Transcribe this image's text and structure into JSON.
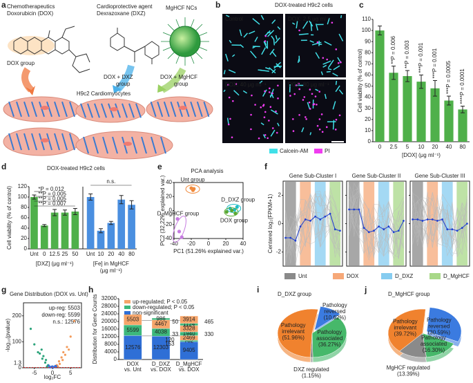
{
  "panel_labels": [
    "a",
    "b",
    "c",
    "d",
    "e",
    "f",
    "g",
    "h",
    "i",
    "j"
  ],
  "a": {
    "dox_title": [
      "Chemotherapeutics",
      "Doxorubicin (DOX)"
    ],
    "dxz_title": [
      "Cardioprotective agent",
      "Dexrazoxane (DXZ)"
    ],
    "nc_title": "MgHCF NCs",
    "dox_group": "DOX group",
    "dxz_group": [
      "DOX + DXZ",
      "group"
    ],
    "mghcf_group": [
      "DOX + MgHCF",
      "group"
    ],
    "cells": "H9c2 Cardiomyocytes"
  },
  "b": {
    "title": "DOX-treated H9c2 cells",
    "images": [
      "Control",
      "DOX: 2.5 μg ml⁻¹",
      "DOX: 40 μg ml⁻¹",
      "DOX: 80 μg ml⁻¹"
    ],
    "legend": [
      {
        "name": "Calcein-AM",
        "color": "#40e0e8"
      },
      {
        "name": "PI",
        "color": "#f03cf0"
      }
    ]
  },
  "c": {
    "type": "bar",
    "ylabel": "Cell viability (% of control)",
    "xlabel": "[DOX] (μg ml⁻¹)",
    "categories": [
      "0",
      "2.5",
      "5",
      "10",
      "20",
      "40",
      "80"
    ],
    "values": [
      100,
      62,
      59,
      54,
      48,
      37,
      29
    ],
    "errors": [
      4,
      6,
      5,
      6,
      7,
      4,
      3
    ],
    "color": "#4fb04a",
    "ylim": [
      0,
      110
    ],
    "yticks": [
      0,
      10,
      20,
      30,
      40,
      50,
      60,
      70,
      80,
      90,
      100,
      110
    ],
    "annotations": [
      "**P = 0.006",
      "**P = 0.003",
      "***P = 0.001",
      "***P = 0.001",
      "***P = 0.0005",
      "****P = 0.0001"
    ]
  },
  "d": {
    "type": "bar",
    "title": "DOX-treated H9c2 cells",
    "ylabel": "Cell viability (% of control)",
    "ylim": [
      0,
      120
    ],
    "yticks": [
      0,
      20,
      40,
      60,
      80,
      100,
      120
    ],
    "groups": [
      {
        "xlabel": [
          "[DXZ] (μg ml⁻¹)"
        ],
        "categories": [
          "Unt",
          "0",
          "12.5",
          "25",
          "50"
        ],
        "values": [
          100,
          45,
          70,
          70,
          72
        ],
        "errors": [
          4,
          2,
          6,
          5,
          6
        ],
        "color": "#4fb04a"
      },
      {
        "xlabel": [
          "[Fe] in MgHCF",
          "(μg ml⁻¹)"
        ],
        "categories": [
          "Unt",
          "10",
          "20",
          "40",
          "80"
        ],
        "values": [
          100,
          35,
          50,
          95,
          85
        ],
        "errors": [
          6,
          4,
          3,
          8,
          8
        ],
        "color": "#4a8fe0"
      }
    ],
    "annotations": [
      "*P = 0.012",
      "**P = 0.005",
      "**P = 0.005",
      "**P = 0.007",
      "n.s."
    ]
  },
  "e": {
    "type": "scatter",
    "title": "PCA analysis",
    "xlabel": "PC1 (51.26% explained var.)",
    "ylabel": "PC2 (32.22% explained var.)",
    "xlim": [
      -40,
      40
    ],
    "xticks": [
      -40,
      -20,
      0,
      20,
      40
    ],
    "ylim": [
      -40,
      40
    ],
    "yticks": [
      -40,
      -20,
      0,
      20,
      40
    ],
    "series": [
      {
        "name": "Unt group",
        "color": "#f08a3c",
        "x": [
          -20,
          -18,
          -17
        ],
        "y": [
          32,
          29,
          31
        ]
      },
      {
        "name": "D_MgHCF group",
        "color": "#c67be0",
        "x": [
          -36,
          -34,
          -31
        ],
        "y": [
          -12,
          -30,
          -38
        ]
      },
      {
        "name": "D_DXZ group",
        "color": "#1fbcc8",
        "x": [
          25,
          30,
          33
        ],
        "y": [
          3,
          1,
          5
        ]
      },
      {
        "name": "DOX group",
        "color": "#5aa832",
        "x": [
          21,
          27,
          31
        ],
        "y": [
          -2,
          0,
          -4
        ]
      }
    ]
  },
  "f": {
    "type": "line",
    "ylabel": "Centered log₂(FPKM+1)",
    "ylim": [
      -3,
      3
    ],
    "yticks": [
      -2,
      0,
      2
    ],
    "line_color": "#1f3fd0",
    "panels": [
      {
        "title": "Gene Sub-Cluster I",
        "values": [
          -1,
          -1,
          -1.2,
          -0.2,
          0.3,
          0.2,
          0.5,
          0.3,
          0.5,
          0.7,
          -0.4,
          -0.5
        ]
      },
      {
        "title": "Gene Sub-Cluster II",
        "values": [
          1,
          1,
          1,
          -0.3,
          -0.6,
          -0.5,
          -0.2,
          -0.4,
          -0.2,
          -0.6,
          -0.5,
          0.2
        ]
      },
      {
        "title": "Gene Sub-Cluster III",
        "values": [
          0.3,
          0.3,
          0.2,
          0.3,
          0.3,
          0.2,
          0.3,
          -0.4,
          -0.4,
          -0.5,
          -0.3,
          0
        ]
      }
    ],
    "legend": [
      {
        "name": "Unt",
        "color": "#8a8a8a"
      },
      {
        "name": "DOX",
        "color": "#f6a878"
      },
      {
        "name": "D_DXZ",
        "color": "#86ccf0"
      },
      {
        "name": "D_MgHCF",
        "color": "#a8d888"
      }
    ]
  },
  "g": {
    "type": "scatter",
    "title": "Gene Distribution (DOX vs. Unt)",
    "xlabel": "log₂FC",
    "ylabel": "-log₁₀(pvalue)",
    "xlim": [
      -8,
      8
    ],
    "xticks": [
      -5,
      0,
      5
    ],
    "ylim": [
      0,
      250
    ],
    "yticks": [
      0,
      100,
      200
    ],
    "threshold": 1.3,
    "annotations": [
      "up-reg: 5503",
      "down-reg: 5599",
      "n.s.: 12576"
    ],
    "series": [
      {
        "color": "#f39a5a",
        "x": [
          1.2,
          1.8,
          2.5,
          3,
          3.5,
          4,
          5,
          6,
          2,
          1.5,
          2.8,
          4.5
        ],
        "y": [
          10,
          25,
          40,
          60,
          50,
          80,
          120,
          180,
          15,
          5,
          30,
          70
        ]
      },
      {
        "color": "#2aa37a",
        "x": [
          -1.2,
          -1.8,
          -2.5,
          -3,
          -3.5,
          -4,
          -5,
          -6,
          -2,
          -1.5,
          -2.8
        ],
        "y": [
          10,
          30,
          45,
          70,
          55,
          60,
          90,
          150,
          20,
          5,
          35
        ]
      },
      {
        "color": "#3a6fd8",
        "x": [
          -0.5,
          0,
          0.5,
          -1,
          1,
          0.2,
          -0.3,
          0.8,
          -0.8
        ],
        "y": [
          2,
          5,
          3,
          8,
          6,
          1,
          4,
          7,
          2
        ]
      }
    ]
  },
  "h": {
    "type": "bar",
    "ylabel": "Distribution for Gene Counts",
    "ylim": [
      0,
      32000
    ],
    "yticks": [
      0,
      4000,
      8000,
      12000,
      16000,
      20000,
      24000,
      28000,
      32000
    ],
    "legend": [
      {
        "name": "up-regulated; P < 0.05",
        "color": "#f6a56a"
      },
      {
        "name": "down-regulated; P < 0.05",
        "color": "#3db87c"
      },
      {
        "name": "non-significant",
        "color": "#2f6fd6"
      }
    ],
    "categories": [
      [
        "DOX",
        "vs. Unt"
      ],
      [
        "D_DXZ",
        "vs. DOX"
      ],
      [
        "D_MgHCF",
        "vs. DOX"
      ]
    ],
    "bars": [
      [
        {
          "value": 12576,
          "kind": 2
        },
        {
          "value": 5599,
          "kind": 1
        },
        {
          "value": 5503,
          "kind": 0
        }
      ],
      [
        {
          "value": 12303,
          "kind": 2
        },
        {
          "value": 4038,
          "kind": 1
        },
        {
          "value": 4467,
          "kind": 0
        },
        {
          "value": 986,
          "kind": 1
        }
      ],
      [
        {
          "value": 9405,
          "kind": 2
        },
        {
          "value": 702,
          "kind": 1
        },
        {
          "value": 2469,
          "kind": 0
        },
        {
          "value": 1940,
          "kind": 1
        },
        {
          "value": 3328,
          "kind": 0
        },
        {
          "value": 1124,
          "kind": 1
        },
        {
          "value": 3914,
          "kind": 0
        }
      ]
    ],
    "notes": [
      "50",
      "33",
      "120",
      "153",
      "465",
      "330"
    ]
  },
  "i": {
    "type": "pie",
    "title": "D_DXZ group",
    "labels": [
      [
        "Pathology",
        "reversed"
      ],
      [
        "Pathology",
        "associated"
      ],
      [
        "DXZ regulated"
      ],
      [
        "Pathology",
        "irrelevant"
      ]
    ],
    "values": [
      10.62,
      36.27,
      1.15,
      51.96
    ],
    "value_labels": [
      "(10.62%)",
      "(36.27%)",
      "(1.15%)",
      "(51.96%)"
    ],
    "colors": [
      "#3b7be0",
      "#46b86a",
      "#8a8a8a",
      "#f0822e"
    ]
  },
  "j": {
    "type": "pie",
    "title": "D_MgHCF group",
    "labels": [
      [
        "Pathology",
        "reversed"
      ],
      [
        "Pathology",
        "associated"
      ],
      [
        "MgHCF regulated"
      ],
      [
        "Pathology",
        "irrelevant"
      ]
    ],
    "values": [
      30.59,
      16.3,
      13.39,
      39.72
    ],
    "value_labels": [
      "(30.59%)",
      "(16.30%)",
      "(13.39%)",
      "(39.72%)"
    ],
    "colors": [
      "#3b7be0",
      "#46b86a",
      "#8a8a8a",
      "#f0822e"
    ]
  }
}
